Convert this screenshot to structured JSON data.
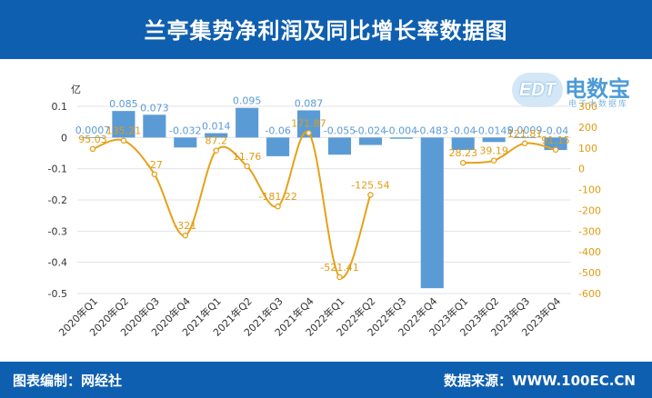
{
  "header": {
    "title": "兰亭集势净利润及同比增长率数据图"
  },
  "logo": {
    "text": "电数宝",
    "badge": "EDT",
    "sub": "电子大数据库"
  },
  "footer": {
    "left": "图表编制：网经社",
    "right": "数据来源：WWW.100EC.CN"
  },
  "colors": {
    "bar": "#5b9bd5",
    "line": "#e6a119",
    "header": "#0f5fb0"
  },
  "chart_data": {
    "type": "bar",
    "title": "兰亭集势净利润及同比增长率数据图",
    "ylabel": "亿",
    "categories": [
      "2020年Q1",
      "2020年Q2",
      "2020年Q3",
      "2020年Q4",
      "2021年Q1",
      "2021年Q2",
      "2021年Q3",
      "2021年Q4",
      "2022年Q1",
      "2022年Q2",
      "2022年Q3",
      "2022年Q4",
      "2023年Q1",
      "2023年Q2",
      "2023年Q3",
      "2023年Q4"
    ],
    "series": [
      {
        "type": "bar",
        "axis": "left",
        "values": [
          0.0007,
          0.085,
          0.073,
          -0.032,
          0.014,
          0.095,
          -0.06,
          0.087,
          -0.055,
          -0.024,
          -0.004,
          -0.483,
          -0.04,
          -0.0145,
          0.0009,
          -0.04
        ],
        "labels": [
          "0.0007",
          "0.085",
          "0.073",
          "-0.032",
          "0.014",
          "0.095",
          "-0.06",
          "0.087",
          "-0.055",
          "-0.024",
          "-0.004",
          "-0.483",
          "-0.04",
          "-0.0145",
          "0.0009",
          "-0.04"
        ]
      },
      {
        "type": "line",
        "axis": "right",
        "values": [
          95.03,
          135.21,
          -27,
          -321,
          87.2,
          11.76,
          -181.22,
          171.87,
          -521.41,
          -125.54,
          null,
          null,
          28.23,
          39.19,
          121.81,
          91.15
        ],
        "labels": [
          "95.03",
          "135.21",
          "-27",
          "-321",
          "87.2",
          "11.76",
          "-181.22",
          "171.87",
          "-521.41",
          "-125.54",
          "",
          "",
          "28.23",
          "39.19",
          "121.81",
          "91.15"
        ]
      }
    ],
    "ylim": [
      -0.5,
      0.1
    ],
    "yticks": [
      "0.1",
      "0",
      "-0.1",
      "-0.2",
      "-0.3",
      "-0.4",
      "-0.5"
    ],
    "ylim_right": [
      -600,
      300
    ],
    "yticks_right": [
      "300",
      "200",
      "100",
      "0",
      "-100",
      "-200",
      "-300",
      "-400",
      "-500",
      "-600"
    ],
    "legend": "none",
    "grid": true
  }
}
